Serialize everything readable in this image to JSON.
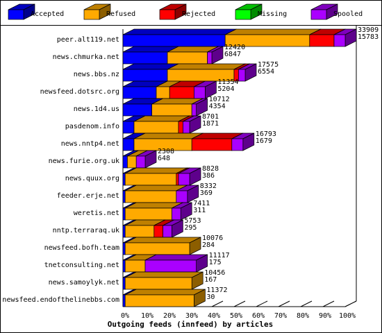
{
  "chart_data": {
    "type": "bar",
    "orientation": "horizontal",
    "stacked": true,
    "percent_scale": true,
    "title": "Outgoing feeds (innfeed) by articles",
    "xlim": [
      0,
      100
    ],
    "x_ticks": [
      "0%",
      "10%",
      "20%",
      "30%",
      "40%",
      "50%",
      "60%",
      "70%",
      "80%",
      "90%",
      "100%"
    ],
    "legend_position": "top",
    "series": [
      {
        "name": "Accepted",
        "color": "#0000ff"
      },
      {
        "name": "Refused",
        "color": "#ffaa00"
      },
      {
        "name": "Rejected",
        "color": "#ff0000"
      },
      {
        "name": "Missing",
        "color": "#00ff00"
      },
      {
        "name": "Spooled",
        "color": "#aa00ff"
      }
    ],
    "rows": [
      {
        "label": "peer.alt119.net",
        "v1": "33909",
        "v2": "15783",
        "pct": [
          46,
          38,
          11,
          0,
          5
        ]
      },
      {
        "label": "news.chmurka.net",
        "v1": "12420",
        "v2": "6847",
        "pct": [
          20,
          18,
          0,
          0,
          2
        ]
      },
      {
        "label": "news.bbs.nz",
        "v1": "17575",
        "v2": "6554",
        "pct": [
          20,
          30,
          2,
          0,
          3
        ]
      },
      {
        "label": "newsfeed.dotsrc.org",
        "v1": "11354",
        "v2": "5204",
        "pct": [
          15,
          6,
          11,
          0,
          5
        ]
      },
      {
        "label": "news.1d4.us",
        "v1": "10712",
        "v2": "4354",
        "pct": [
          13,
          18,
          0,
          0,
          2
        ]
      },
      {
        "label": "pasdenom.info",
        "v1": "8701",
        "v2": "1871",
        "pct": [
          5,
          20,
          2,
          0,
          3
        ]
      },
      {
        "label": "news.nntp4.net",
        "v1": "16793",
        "v2": "1679",
        "pct": [
          5,
          26,
          18,
          0,
          5
        ]
      },
      {
        "label": "news.furie.org.uk",
        "v1": "2308",
        "v2": "648",
        "pct": [
          2,
          4,
          0,
          0,
          4
        ]
      },
      {
        "label": "news.quux.org",
        "v1": "8828",
        "v2": "386",
        "pct": [
          1,
          23,
          1,
          0,
          5
        ]
      },
      {
        "label": "feeder.erje.net",
        "v1": "8332",
        "v2": "369",
        "pct": [
          1,
          23,
          0,
          0,
          5
        ]
      },
      {
        "label": "weretis.net",
        "v1": "7411",
        "v2": "311",
        "pct": [
          1,
          21,
          0,
          0,
          4
        ]
      },
      {
        "label": "nntp.terraraq.uk",
        "v1": "5753",
        "v2": "295",
        "pct": [
          1,
          13,
          4,
          0,
          4
        ]
      },
      {
        "label": "newsfeed.bofh.team",
        "v1": "10076",
        "v2": "284",
        "pct": [
          1,
          29,
          0,
          0,
          0
        ]
      },
      {
        "label": "tnetconsulting.net",
        "v1": "11117",
        "v2": "175",
        "pct": [
          1,
          9,
          0,
          0,
          23
        ]
      },
      {
        "label": "news.samoylyk.net",
        "v1": "10456",
        "v2": "167",
        "pct": [
          1,
          30,
          0,
          0,
          0
        ]
      },
      {
        "label": "newsfeed.endofthelinebbs.com",
        "v1": "11372",
        "v2": "30",
        "pct": [
          1,
          31,
          0,
          0,
          0
        ]
      }
    ]
  }
}
